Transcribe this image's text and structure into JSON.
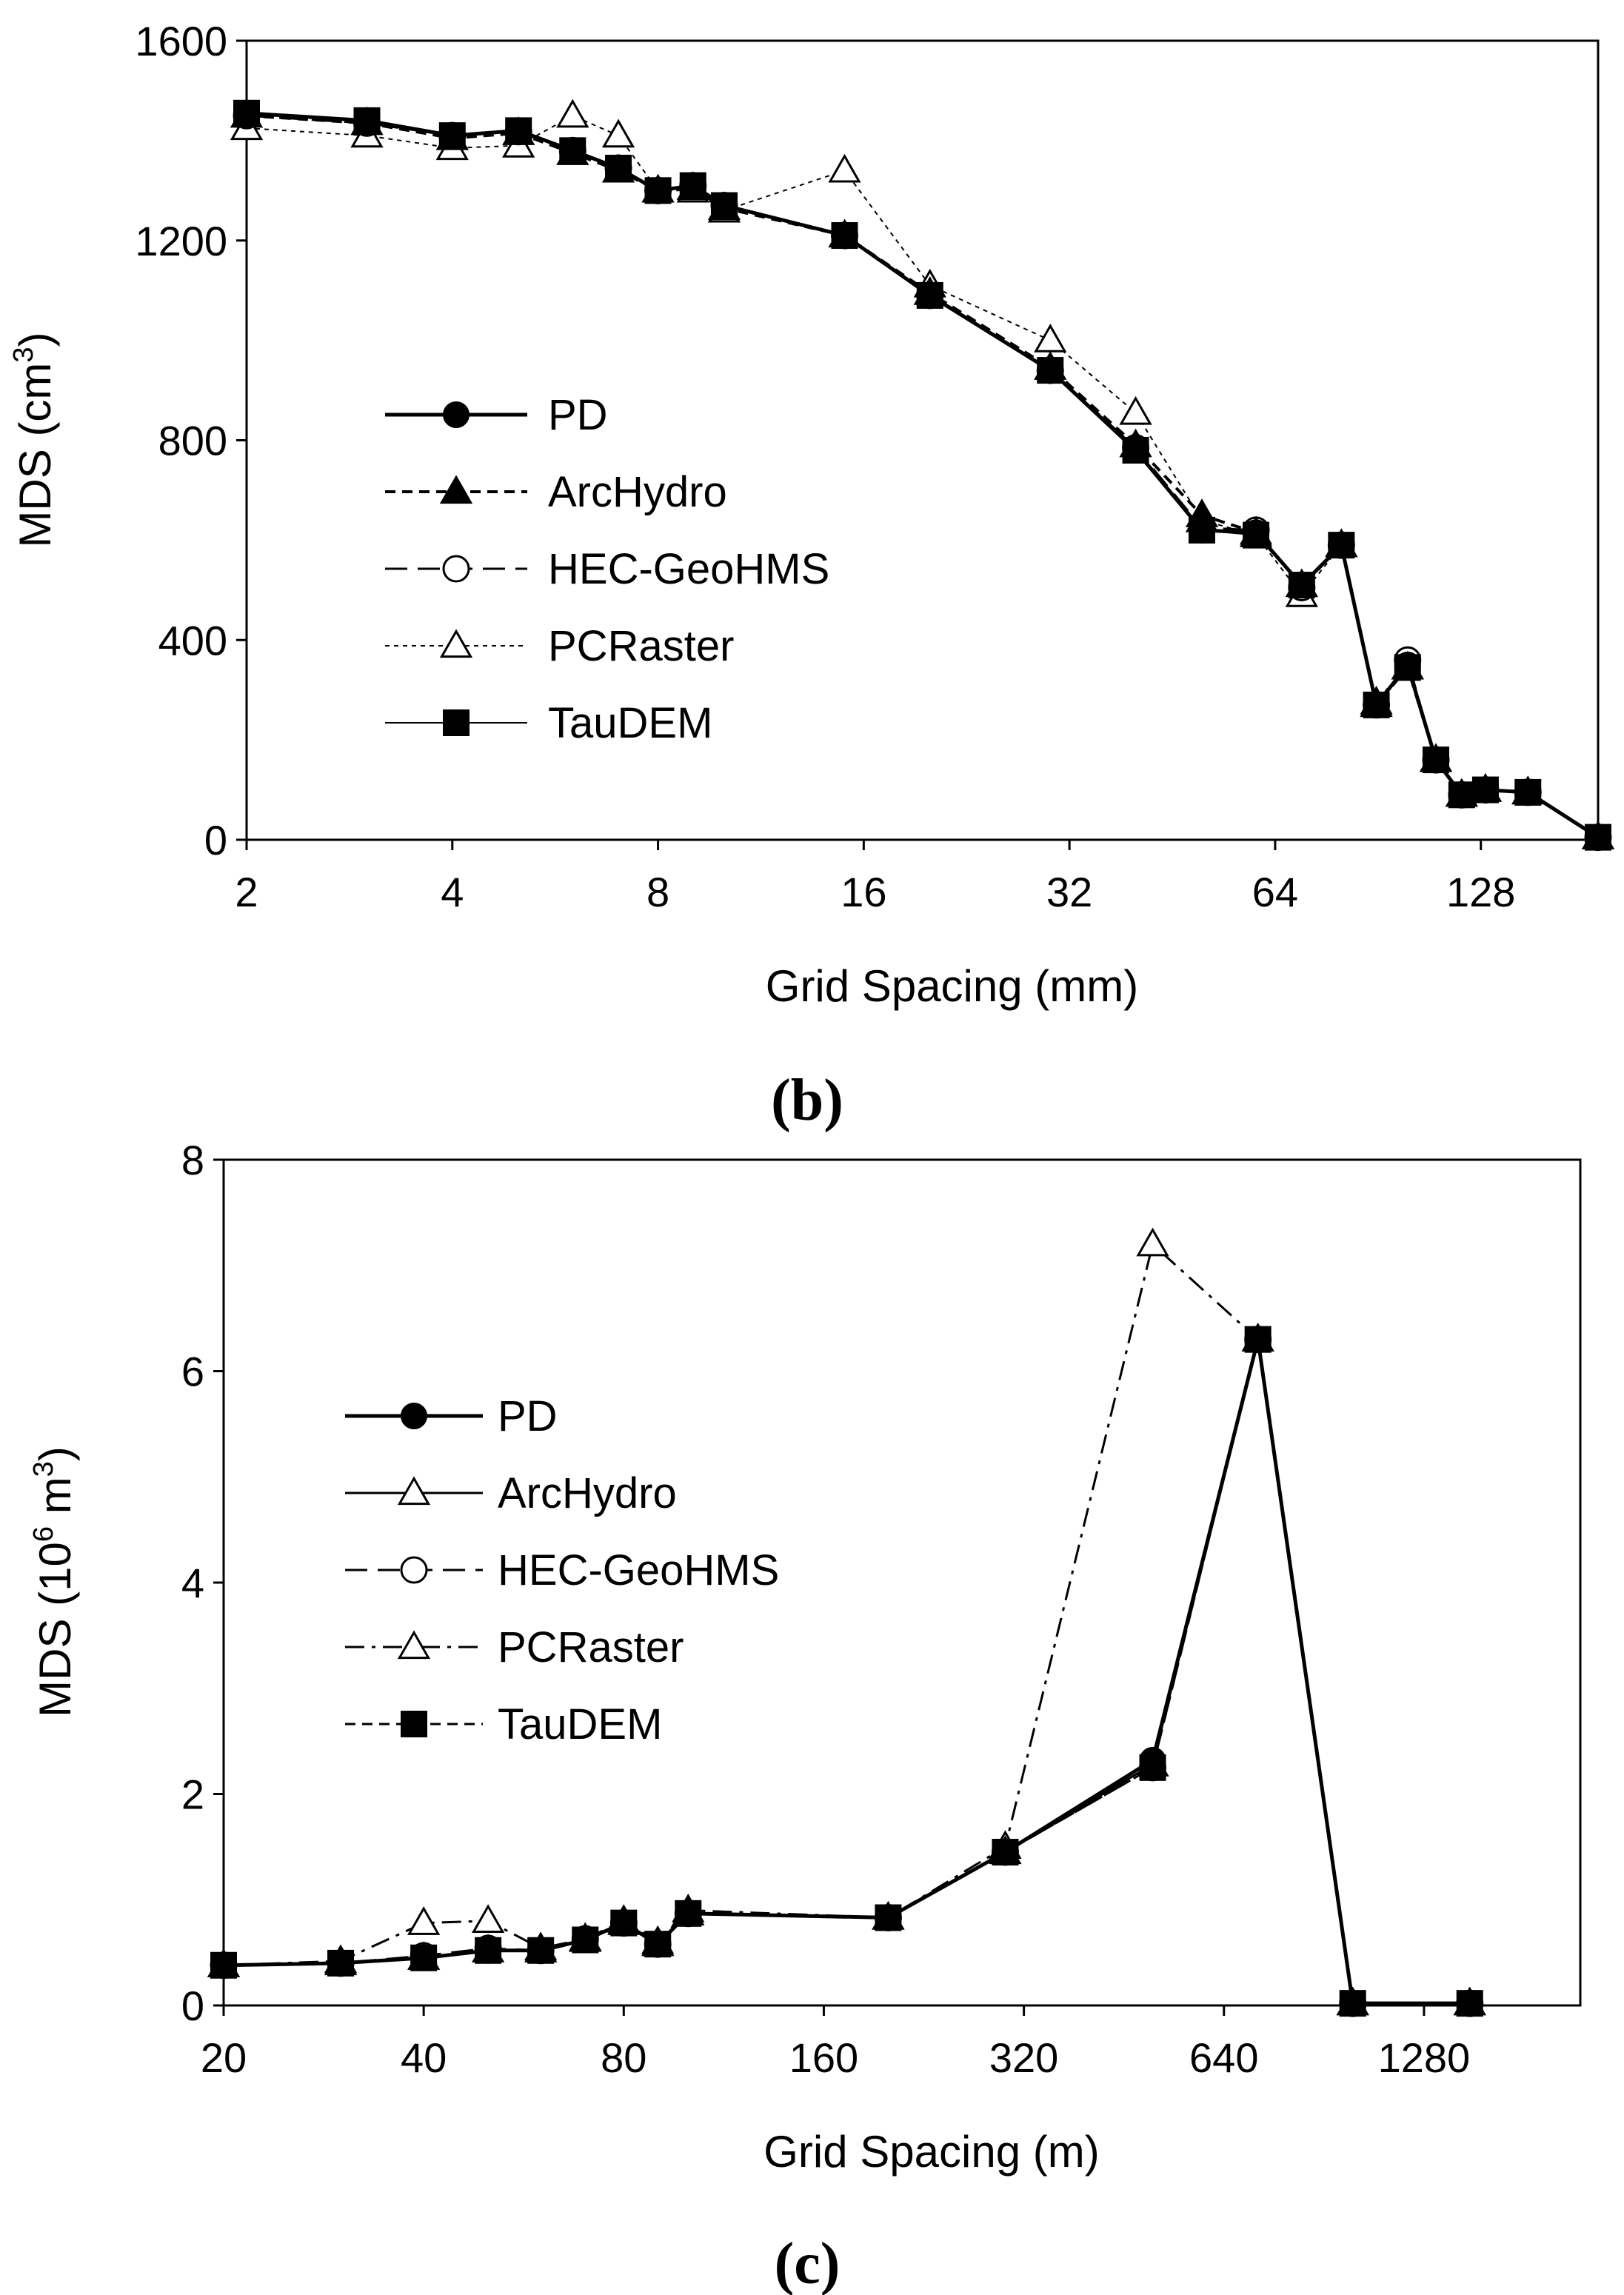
{
  "chart_data": [
    {
      "type": "line",
      "panel": "(b)",
      "xscale": "log2",
      "xlabel": "Grid Spacing (mm)",
      "ylabel": "MDS (cm",
      "ylabel_sup": "3",
      "ylabel_end": ")",
      "xlim": [
        2,
        190
      ],
      "ylim": [
        0,
        1600
      ],
      "xticks": [
        2,
        4,
        8,
        16,
        32,
        64,
        128
      ],
      "xtick_labels": [
        "2",
        "4",
        "8",
        "16",
        "32",
        "64",
        "128"
      ],
      "yticks": [
        0,
        400,
        800,
        1200,
        1600
      ],
      "ytick_labels": [
        "0",
        "400",
        "800",
        "1200",
        "1600"
      ],
      "legend_position": "center-left",
      "series": [
        {
          "name": "PD",
          "marker": "filled-circle",
          "dash": "solid",
          "width": 5,
          "x": [
            2,
            3,
            4,
            5,
            6,
            7,
            8,
            9,
            10,
            15,
            20,
            30,
            40,
            50,
            60,
            70,
            80,
            90,
            100,
            110,
            120,
            130,
            150,
            190
          ],
          "y": [
            1455,
            1440,
            1410,
            1420,
            1380,
            1345,
            1300,
            1310,
            1270,
            1210,
            1090,
            940,
            780,
            620,
            615,
            510,
            590,
            270,
            350,
            160,
            90,
            100,
            95,
            5
          ]
        },
        {
          "name": "ArcHydro",
          "marker": "filled-triangle",
          "dash": "short-dash",
          "width": 4,
          "x": [
            2,
            3,
            4,
            5,
            6,
            7,
            8,
            9,
            10,
            15,
            20,
            30,
            40,
            50,
            60,
            70,
            80,
            90,
            100,
            110,
            120,
            130,
            150,
            190
          ],
          "y": [
            1450,
            1435,
            1405,
            1415,
            1375,
            1340,
            1300,
            1305,
            1265,
            1210,
            1095,
            945,
            790,
            650,
            615,
            510,
            590,
            270,
            345,
            160,
            90,
            100,
            95,
            5
          ]
        },
        {
          "name": "HEC-GeoHMS",
          "marker": "open-circle",
          "dash": "long-dash",
          "width": 3,
          "x": [
            2,
            3,
            4,
            5,
            6,
            7,
            8,
            9,
            10,
            15,
            20,
            30,
            40,
            50,
            60,
            70,
            80,
            90,
            100,
            110,
            120,
            130,
            150,
            190
          ],
          "y": [
            1450,
            1435,
            1410,
            1418,
            1380,
            1345,
            1300,
            1310,
            1270,
            1210,
            1090,
            940,
            785,
            625,
            620,
            505,
            590,
            270,
            360,
            160,
            90,
            100,
            95,
            5
          ]
        },
        {
          "name": "PCRaster",
          "marker": "open-triangle",
          "dash": "dotted",
          "width": 2,
          "x": [
            2,
            3,
            4,
            5,
            6,
            7,
            8,
            9,
            10,
            15,
            20,
            30,
            40,
            50,
            60,
            70,
            80,
            90,
            100,
            110,
            120,
            130,
            150,
            190
          ],
          "y": [
            1425,
            1410,
            1385,
            1390,
            1450,
            1410,
            1300,
            1300,
            1260,
            1340,
            1110,
            1000,
            855,
            640,
            610,
            490,
            590,
            275,
            345,
            160,
            90,
            100,
            95,
            5
          ]
        },
        {
          "name": "TauDEM",
          "marker": "filled-square",
          "dash": "solid",
          "width": 2,
          "x": [
            2,
            3,
            4,
            5,
            6,
            7,
            8,
            9,
            10,
            15,
            20,
            30,
            40,
            50,
            60,
            70,
            80,
            90,
            100,
            110,
            120,
            130,
            150,
            190
          ],
          "y": [
            1455,
            1440,
            1410,
            1420,
            1380,
            1345,
            1300,
            1310,
            1270,
            1210,
            1090,
            940,
            780,
            620,
            610,
            510,
            590,
            270,
            345,
            160,
            90,
            100,
            95,
            5
          ]
        }
      ]
    },
    {
      "type": "line",
      "panel": "(c)",
      "xscale": "log2",
      "xlabel": "Grid Spacing (m)",
      "ylabel": "MDS (10",
      "ylabel_sup": "6",
      "ylabel_end": " m",
      "ylabel_sup2": "3",
      "ylabel_end2": ")",
      "xlim": [
        20,
        2200
      ],
      "ylim": [
        0,
        8
      ],
      "xticks": [
        20,
        40,
        80,
        160,
        320,
        640,
        1280
      ],
      "xtick_labels": [
        "20",
        "40",
        "80",
        "160",
        "320",
        "640",
        "1280"
      ],
      "yticks": [
        0,
        2,
        4,
        6,
        8
      ],
      "ytick_labels": [
        "0",
        "2",
        "4",
        "6",
        "8"
      ],
      "legend_position": "center-left",
      "series": [
        {
          "name": "PD",
          "marker": "filled-circle",
          "dash": "solid",
          "width": 5,
          "x": [
            20,
            30,
            40,
            50,
            60,
            70,
            80,
            90,
            100,
            200,
            300,
            500,
            720,
            1000,
            1500
          ],
          "y": [
            0.38,
            0.4,
            0.45,
            0.52,
            0.52,
            0.62,
            0.78,
            0.58,
            0.87,
            0.83,
            1.45,
            2.32,
            6.3,
            0.02,
            0.02
          ]
        },
        {
          "name": "ArcHydro",
          "marker": "open-triangle",
          "dash": "solid",
          "width": 3,
          "x": [
            20,
            30,
            40,
            50,
            60,
            70,
            80,
            90,
            100,
            200,
            300,
            500,
            720,
            1000,
            1500
          ],
          "y": [
            0.38,
            0.4,
            0.45,
            0.52,
            0.52,
            0.62,
            0.78,
            0.58,
            0.87,
            0.83,
            1.45,
            2.28,
            6.3,
            0.02,
            0.02
          ]
        },
        {
          "name": "HEC-GeoHMS",
          "marker": "open-circle",
          "dash": "long-dash",
          "width": 3,
          "x": [
            20,
            30,
            40,
            50,
            60,
            70,
            80,
            90,
            100,
            200,
            300,
            500,
            720,
            1000,
            1500
          ],
          "y": [
            0.38,
            0.4,
            0.47,
            0.54,
            0.52,
            0.63,
            0.78,
            0.58,
            0.87,
            0.83,
            1.45,
            2.25,
            6.3,
            0.02,
            0.02
          ]
        },
        {
          "name": "PCRaster",
          "marker": "open-triangle",
          "dash": "dash-dot",
          "width": 3,
          "x": [
            20,
            30,
            40,
            50,
            60,
            70,
            80,
            90,
            100,
            200,
            300,
            500,
            720,
            1000,
            1500
          ],
          "y": [
            0.38,
            0.42,
            0.78,
            0.8,
            0.54,
            0.63,
            0.8,
            0.6,
            0.9,
            0.83,
            1.5,
            7.2,
            6.3,
            0.02,
            0.02
          ]
        },
        {
          "name": "TauDEM",
          "marker": "filled-square",
          "dash": "short-dash",
          "width": 3,
          "x": [
            20,
            30,
            40,
            50,
            60,
            70,
            80,
            90,
            100,
            200,
            300,
            500,
            720,
            1000,
            1500
          ],
          "y": [
            0.38,
            0.4,
            0.45,
            0.52,
            0.52,
            0.62,
            0.78,
            0.58,
            0.87,
            0.83,
            1.45,
            2.25,
            6.3,
            0.02,
            0.02
          ]
        }
      ]
    }
  ]
}
